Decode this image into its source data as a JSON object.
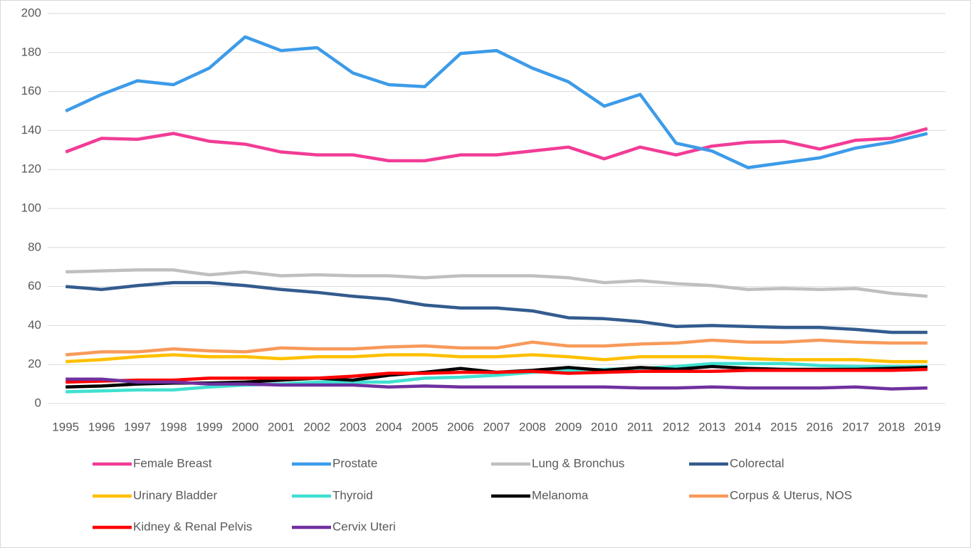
{
  "chart_data": {
    "type": "line",
    "x": [
      "1995",
      "1996",
      "1997",
      "1998",
      "1999",
      "2000",
      "2001",
      "2002",
      "2003",
      "2004",
      "2005",
      "2006",
      "2007",
      "2008",
      "2009",
      "2010",
      "2011",
      "2012",
      "2013",
      "2014",
      "2015",
      "2016",
      "2017",
      "2018",
      "2019"
    ],
    "ylim": [
      0,
      200
    ],
    "yticks": [
      0,
      20,
      40,
      60,
      80,
      100,
      120,
      140,
      160,
      180,
      200
    ],
    "grid": true,
    "legend": "bottom",
    "series": [
      {
        "name": "Female Breast",
        "color": "#f23c96",
        "values": [
          129,
          136,
          135.5,
          138.5,
          134.5,
          133,
          129,
          127.5,
          127.5,
          124.5,
          124.5,
          127.5,
          127.5,
          129.5,
          131.5,
          125.5,
          131.5,
          127.5,
          132,
          134,
          134.5,
          130.5,
          135,
          136,
          141
        ]
      },
      {
        "name": "Prostate",
        "color": "#3d9be9",
        "values": [
          150,
          158.5,
          165.5,
          163.5,
          172,
          188,
          181,
          182.5,
          169.5,
          163.5,
          162.5,
          179.5,
          181,
          172,
          165,
          152.5,
          158.5,
          133.5,
          129.5,
          121,
          123.5,
          126,
          131,
          134,
          138.5
        ]
      },
      {
        "name": "Lung & Bronchus",
        "color": "#bfbfbf",
        "values": [
          67.5,
          68,
          68.5,
          68.5,
          66,
          67.5,
          65.5,
          66,
          65.5,
          65.5,
          64.5,
          65.5,
          65.5,
          65.5,
          64.5,
          62,
          63,
          61.5,
          60.5,
          58.5,
          59,
          58.5,
          59,
          56.5,
          55
        ]
      },
      {
        "name": "Colorectal",
        "color": "#335b8e",
        "values": [
          60,
          58.5,
          60.5,
          62,
          62,
          60.5,
          58.5,
          57,
          55,
          53.5,
          50.5,
          49,
          49,
          47.5,
          44,
          43.5,
          42,
          39.5,
          40,
          39.5,
          39,
          39,
          38,
          36.5,
          36.5
        ]
      },
      {
        "name": "Urinary Bladder",
        "color": "#ffc000",
        "values": [
          21.5,
          22.5,
          24,
          25,
          24,
          24,
          23,
          24,
          24,
          25,
          25,
          24,
          24,
          25,
          24,
          22.5,
          24,
          24,
          24,
          23,
          22.5,
          22.5,
          22.5,
          21.5,
          21.5
        ]
      },
      {
        "name": "Thyroid",
        "color": "#40e0d0",
        "values": [
          6,
          6.5,
          7,
          7,
          8.5,
          9.5,
          10,
          11,
          11,
          11,
          13,
          13.5,
          14.5,
          16,
          17,
          17.5,
          18,
          19,
          20.5,
          20.5,
          20.5,
          19.5,
          19,
          19,
          19
        ]
      },
      {
        "name": "Melanoma",
        "color": "#000000",
        "values": [
          8.5,
          9,
          10,
          10.5,
          10.5,
          11,
          12,
          13,
          12,
          14.5,
          16,
          18,
          16,
          17,
          18.5,
          17,
          18.5,
          17.5,
          19,
          18,
          17.5,
          17.5,
          17.5,
          18,
          18.5
        ]
      },
      {
        "name": "Corpus & Uterus, NOS",
        "color": "#f79a5b",
        "values": [
          25,
          26.5,
          26.5,
          28,
          27,
          26.5,
          28.5,
          28,
          28,
          29,
          29.5,
          28.5,
          28.5,
          31.5,
          29.5,
          29.5,
          30.5,
          31,
          32.5,
          31.5,
          31.5,
          32.5,
          31.5,
          31,
          31
        ]
      },
      {
        "name": "Kidney & Renal Pelvis",
        "color": "#ff0000",
        "values": [
          11,
          11.5,
          12,
          12,
          13,
          13,
          13,
          13,
          14,
          15.5,
          15.5,
          16,
          16,
          16.5,
          15.5,
          16,
          16.5,
          16.5,
          16.5,
          17,
          17,
          17,
          17,
          17,
          17.5
        ]
      },
      {
        "name": "Cervix Uteri",
        "color": "#7030a0",
        "values": [
          12.5,
          12.5,
          11,
          11,
          10,
          10,
          9.5,
          9.5,
          9.5,
          8.5,
          9,
          8.5,
          8.5,
          8.5,
          8.5,
          8.5,
          8,
          8,
          8.5,
          8,
          8,
          8,
          8.5,
          7.5,
          8
        ]
      }
    ]
  }
}
